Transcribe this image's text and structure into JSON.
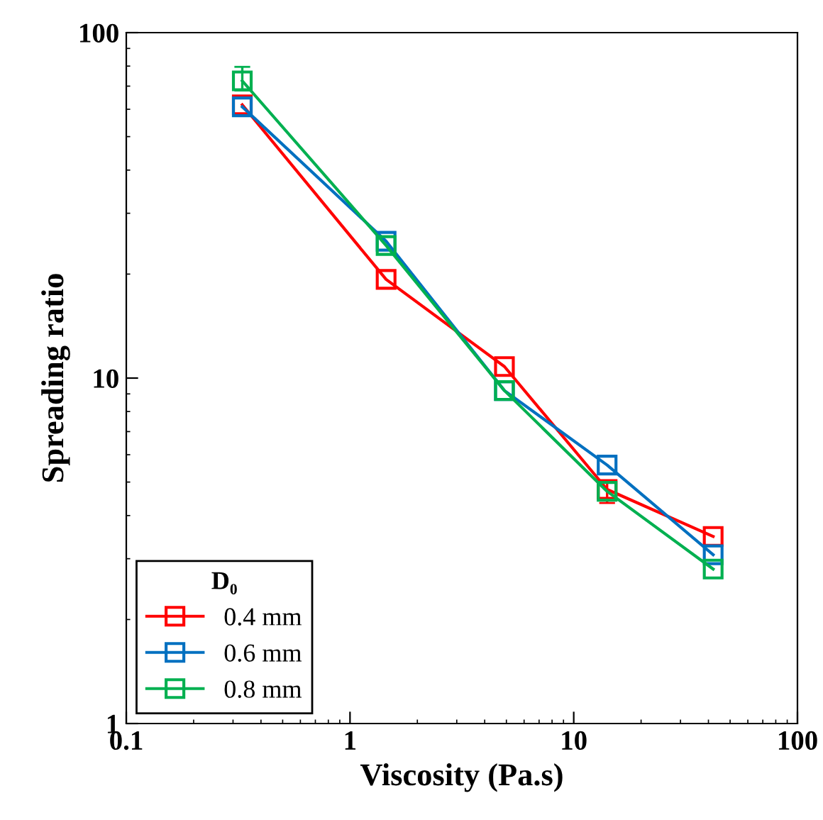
{
  "chart_data": {
    "type": "line",
    "xlabel": "Viscosity (Pa.s)",
    "ylabel": "Spreading ratio",
    "legend_title": "D₀",
    "x": [
      0.33,
      1.45,
      4.9,
      14.1,
      42
    ],
    "series": [
      {
        "name": "0.4 mm",
        "color": "#ff0000",
        "values": [
          61.8,
          19.3,
          10.8,
          4.76,
          3.48
        ],
        "errors": [
          null,
          null,
          null,
          [
            4.35,
            5.0
          ],
          null
        ]
      },
      {
        "name": "0.6 mm",
        "color": "#0070c0",
        "values": [
          61,
          24.9,
          9.2,
          5.6,
          3.08
        ]
      },
      {
        "name": "0.8 mm",
        "color": "#00b050",
        "values": [
          72.5,
          24.2,
          9.2,
          4.7,
          2.8
        ],
        "errors": [
          [
            68,
            79.6
          ],
          null,
          null,
          null,
          null
        ]
      }
    ],
    "log": "xy",
    "xlim": [
      0.1,
      100
    ],
    "ylim": [
      1,
      100
    ],
    "xticks": [
      0.1,
      1,
      10,
      100
    ],
    "yticks": [
      1,
      10,
      100
    ],
    "marker": "square",
    "legend": "bottom left",
    "grid": false
  }
}
